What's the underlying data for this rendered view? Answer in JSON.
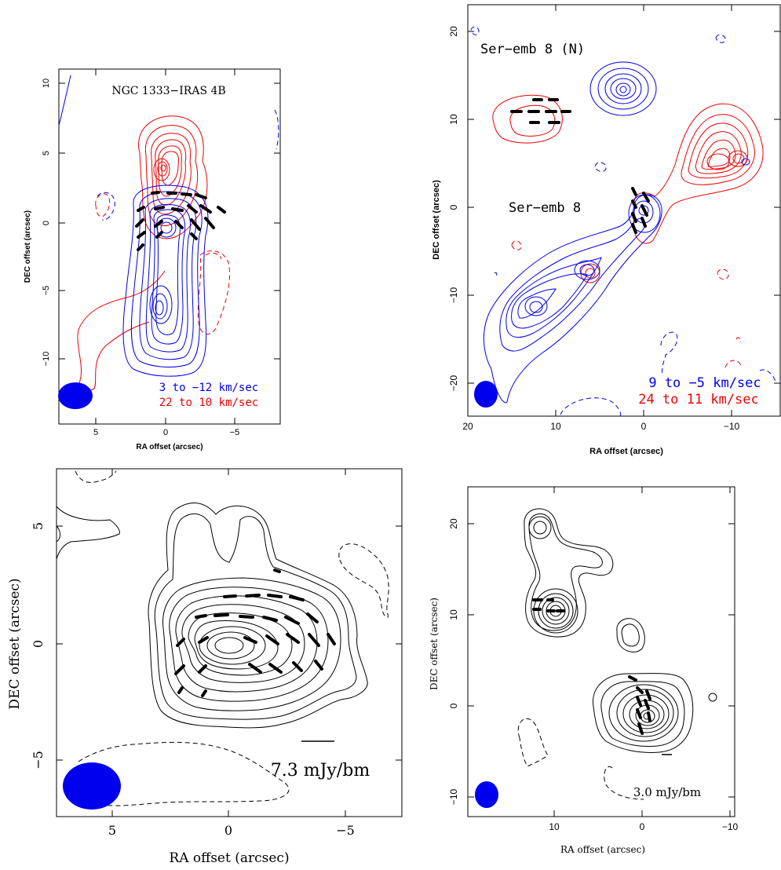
{
  "colors": {
    "blue": "#0000ee",
    "red": "#ee0000",
    "black": "#000000"
  },
  "panels": {
    "p1": {
      "title": "NGC 1333−IRAS 4B",
      "xlabel": "RA offset (arcsec)",
      "ylabel": "DEC offset (arcsec)",
      "xticks": [
        "5",
        "0",
        "−5"
      ],
      "yticks": [
        "10",
        "5",
        "0",
        "−5",
        "−10"
      ],
      "legend_blue": "3 to −12 km/sec",
      "legend_red": "22 to 10 km/sec"
    },
    "p2": {
      "label_north": "Ser−emb 8 (N)",
      "label_main": "Ser−emb 8",
      "xlabel": "RA offset (arcsec)",
      "ylabel": "DEC offset (arcsec)",
      "xticks": [
        "20",
        "10",
        "0",
        "−10"
      ],
      "yticks": [
        "20",
        "10",
        "0",
        "−10",
        "−20"
      ],
      "legend_blue": "9 to −5 km/sec",
      "legend_red": "24 to 11 km/sec"
    },
    "p3": {
      "xlabel": "RA offset (arcsec)",
      "ylabel": "DEC offset (arcsec)",
      "xticks": [
        "5",
        "0",
        "−5"
      ],
      "yticks": [
        "5",
        "0",
        "−5"
      ],
      "scale_label": "7.3 mJy/bm"
    },
    "p4": {
      "xlabel": "RA offset (arcsec)",
      "ylabel": "DEC offset (arcsec)",
      "xticks": [
        "10",
        "0",
        "−10"
      ],
      "yticks": [
        "20",
        "10",
        "0",
        "−10"
      ],
      "scale_label": "3.0 mJy/bm"
    }
  }
}
